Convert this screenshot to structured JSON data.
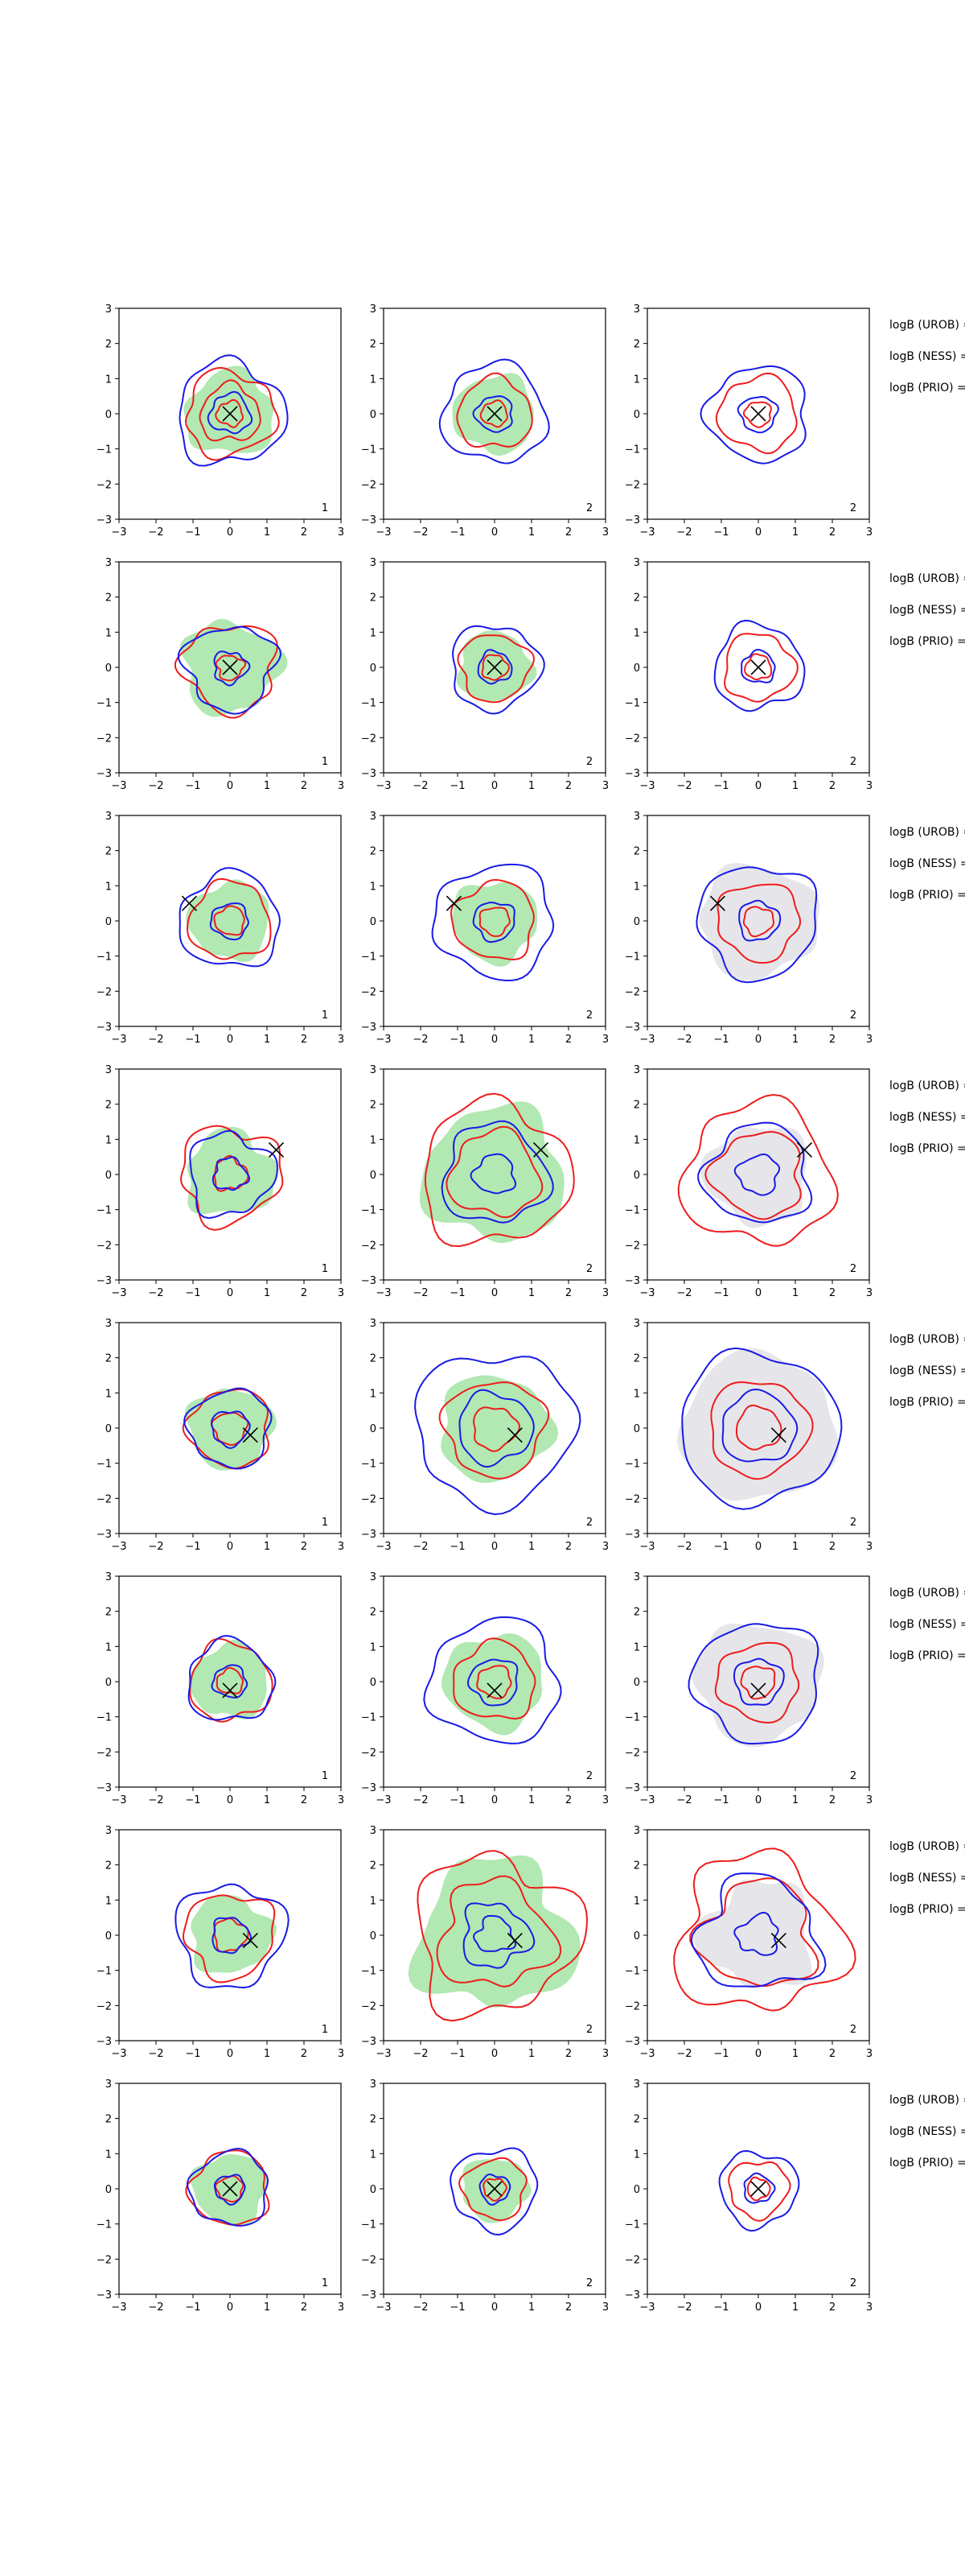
{
  "figure": {
    "grid_rows": 8,
    "grid_cols": 3
  },
  "colors": {
    "fill_green": "#b2e8b2",
    "fill_grey": "#e6e6ea",
    "contour_red": "#ee1c1c",
    "contour_blue": "#1a1ae6",
    "marker": "#000000"
  },
  "side_labels": [
    "logB (UROB) =",
    "logB (NESS) =",
    "logB (PRIO) ="
  ],
  "chart_data": {
    "type": "contour",
    "xlim": [
      -3,
      3
    ],
    "ylim": [
      -3,
      3
    ],
    "xticks": [
      -3,
      -2,
      -1,
      0,
      1,
      2,
      3
    ],
    "yticks": [
      -3,
      -2,
      -1,
      0,
      1,
      2,
      3
    ],
    "panels": [
      [
        {
          "fill": "green",
          "corner_label": "1",
          "marker": [
            0,
            0
          ],
          "blue": [
            1.45,
            0.55
          ],
          "red": [
            1.2,
            0.8,
            0.35
          ],
          "fill_r": 1.2,
          "wob": 0.1,
          "seed": 1
        },
        {
          "fill": "green",
          "corner_label": "2",
          "marker": [
            0,
            0
          ],
          "blue": [
            1.4,
            0.5
          ],
          "red": [
            1.0,
            0.35
          ],
          "fill_r": 1.1,
          "wob": 0.08,
          "seed": 2
        },
        {
          "fill": "none",
          "corner_label": "2",
          "marker": [
            0,
            0
          ],
          "blue": [
            1.35,
            0.5
          ],
          "red": [
            1.05,
            0.35
          ],
          "fill_r": 0,
          "wob": 0.08,
          "seed": 3
        }
      ],
      [
        {
          "fill": "green",
          "corner_label": "1",
          "marker": [
            0,
            0
          ],
          "blue": [
            1.2,
            0.45
          ],
          "red": [
            1.25,
            0.35
          ],
          "fill_r": 1.3,
          "wob": 0.12,
          "seed": 4
        },
        {
          "fill": "green",
          "corner_label": "2",
          "marker": [
            0,
            0
          ],
          "blue": [
            1.2,
            0.45
          ],
          "red": [
            0.95,
            0.35
          ],
          "fill_r": 1.0,
          "wob": 0.08,
          "seed": 5
        },
        {
          "fill": "none",
          "corner_label": "2",
          "marker": [
            0,
            0
          ],
          "blue": [
            1.2,
            0.45
          ],
          "red": [
            0.95,
            0.35
          ],
          "fill_r": 0,
          "wob": 0.08,
          "seed": 6
        }
      ],
      [
        {
          "fill": "green",
          "corner_label": "1",
          "marker": [
            -1.1,
            0.5
          ],
          "blue": [
            1.35,
            0.5
          ],
          "red": [
            1.1,
            0.4
          ],
          "fill_r": 1.1,
          "wob": 0.08,
          "seed": 7
        },
        {
          "fill": "green",
          "corner_label": "2",
          "marker": [
            -1.1,
            0.5
          ],
          "blue": [
            1.6,
            0.55
          ],
          "red": [
            1.1,
            0.4
          ],
          "fill_r": 1.15,
          "wob": 0.08,
          "seed": 8
        },
        {
          "fill": "grey",
          "corner_label": "2",
          "marker": [
            -1.1,
            0.5
          ],
          "blue": [
            1.6,
            0.55
          ],
          "red": [
            1.1,
            0.4
          ],
          "fill_r": 1.6,
          "wob": 0.08,
          "seed": 9
        }
      ],
      [
        {
          "fill": "green",
          "corner_label": "1",
          "marker": [
            1.25,
            0.7
          ],
          "blue": [
            1.15,
            0.45
          ],
          "red": [
            1.35,
            0.45
          ],
          "fill_r": 1.2,
          "wob": 0.12,
          "seed": 10
        },
        {
          "fill": "green",
          "corner_label": "2",
          "marker": [
            1.25,
            0.7
          ],
          "blue": [
            1.4,
            0.55
          ],
          "red": [
            2.0,
            1.2
          ],
          "fill_r": 1.9,
          "wob": 0.1,
          "seed": 11
        },
        {
          "fill": "grey",
          "corner_label": "2",
          "marker": [
            1.25,
            0.7
          ],
          "blue": [
            1.4,
            0.55
          ],
          "red": [
            2.0,
            1.2
          ],
          "fill_r": 1.4,
          "wob": 0.1,
          "seed": 12
        }
      ],
      [
        {
          "fill": "green",
          "corner_label": "1",
          "marker": [
            0.55,
            -0.2
          ],
          "blue": [
            1.1,
            0.5
          ],
          "red": [
            1.1,
            0.45
          ],
          "fill_r": 1.15,
          "wob": 0.08,
          "seed": 13
        },
        {
          "fill": "green",
          "corner_label": "2",
          "marker": [
            0.55,
            -0.2
          ],
          "blue": [
            2.15,
            1.0
          ],
          "red": [
            1.35,
            0.6
          ],
          "fill_r": 1.5,
          "wob": 0.08,
          "seed": 14
        },
        {
          "fill": "grey",
          "corner_label": "2",
          "marker": [
            0.55,
            -0.2
          ],
          "blue": [
            2.15,
            1.0
          ],
          "red": [
            1.35,
            0.6
          ],
          "fill_r": 2.1,
          "wob": 0.06,
          "seed": 15
        }
      ],
      [
        {
          "fill": "green",
          "corner_label": "1",
          "marker": [
            0,
            -0.25
          ],
          "blue": [
            1.15,
            0.45
          ],
          "red": [
            1.1,
            0.35
          ],
          "fill_r": 1.05,
          "wob": 0.08,
          "seed": 16
        },
        {
          "fill": "green",
          "corner_label": "2",
          "marker": [
            0,
            -0.25
          ],
          "blue": [
            1.75,
            0.65
          ],
          "red": [
            1.1,
            0.45
          ],
          "fill_r": 1.35,
          "wob": 0.08,
          "seed": 17
        },
        {
          "fill": "grey",
          "corner_label": "2",
          "marker": [
            0,
            -0.25
          ],
          "blue": [
            1.7,
            0.65
          ],
          "red": [
            1.1,
            0.45
          ],
          "fill_r": 1.7,
          "wob": 0.08,
          "seed": 18
        }
      ],
      [
        {
          "fill": "green",
          "corner_label": "1",
          "marker": [
            0.55,
            -0.15
          ],
          "blue": [
            1.45,
            0.5
          ],
          "red": [
            1.2,
            0.45
          ],
          "fill_r": 1.1,
          "wob": 0.1,
          "seed": 19
        },
        {
          "fill": "green",
          "corner_label": "2",
          "marker": [
            0.55,
            -0.15
          ],
          "blue": [
            0.9,
            0.5
          ],
          "red": [
            2.2,
            1.5
          ],
          "fill_r": 2.1,
          "wob": 0.14,
          "seed": 20
        },
        {
          "fill": "grey",
          "corner_label": "2",
          "marker": [
            0.55,
            -0.15
          ],
          "blue": [
            1.6,
            0.55
          ],
          "red": [
            2.2,
            1.5
          ],
          "fill_r": 1.5,
          "wob": 0.14,
          "seed": 21
        }
      ],
      [
        {
          "fill": "green",
          "corner_label": "1",
          "marker": [
            0,
            0
          ],
          "blue": [
            1.05,
            0.4
          ],
          "red": [
            1.05,
            0.35
          ],
          "fill_r": 1.0,
          "wob": 0.08,
          "seed": 22
        },
        {
          "fill": "green",
          "corner_label": "2",
          "marker": [
            0,
            0
          ],
          "blue": [
            1.15,
            0.4
          ],
          "red": [
            0.85,
            0.3
          ],
          "fill_r": 0.9,
          "wob": 0.08,
          "seed": 23
        },
        {
          "fill": "none",
          "corner_label": "2",
          "marker": [
            0,
            0
          ],
          "blue": [
            1.05,
            0.4
          ],
          "red": [
            0.8,
            0.3
          ],
          "fill_r": 0,
          "wob": 0.08,
          "seed": 24
        }
      ]
    ]
  }
}
